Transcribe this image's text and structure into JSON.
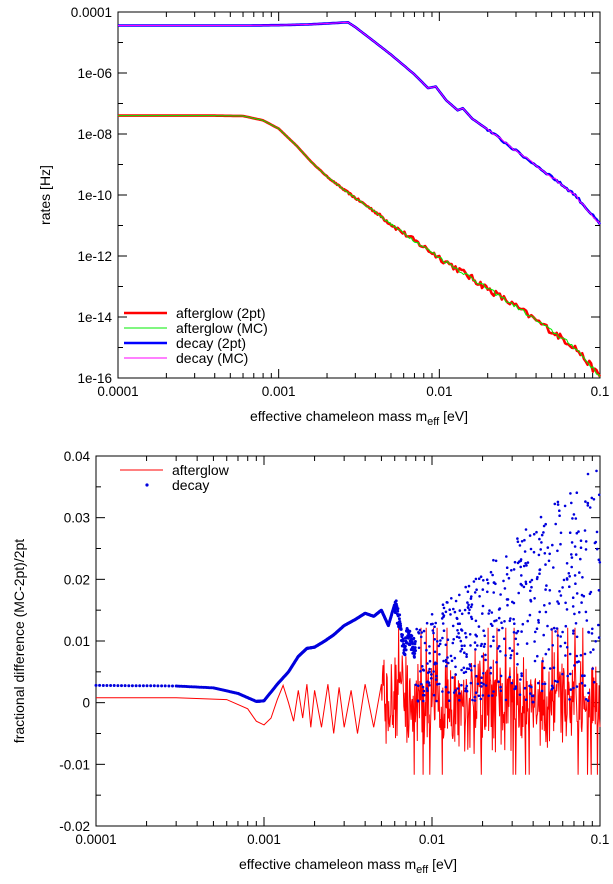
{
  "chart_data": [
    {
      "type": "line",
      "ylabel": "rates [Hz]",
      "xlabel_main": "effective chameleon mass m",
      "xlabel_sub": "eff",
      "xlabel_unit": " [eV]",
      "xscale": "log",
      "yscale": "log",
      "xlim": [
        0.0001,
        0.1
      ],
      "ylim": [
        1e-16,
        0.0001
      ],
      "xticks": [
        {
          "value": 0.0001,
          "label": "0.0001"
        },
        {
          "value": 0.001,
          "label": "0.001"
        },
        {
          "value": 0.01,
          "label": "0.01"
        },
        {
          "value": 0.1,
          "label": "0.1"
        }
      ],
      "yticks": [
        {
          "value": 0.0001,
          "label": "0.0001"
        },
        {
          "value": 1e-06,
          "label": "1e-06"
        },
        {
          "value": 1e-08,
          "label": "1e-08"
        },
        {
          "value": 1e-10,
          "label": "1e-10"
        },
        {
          "value": 1e-12,
          "label": "1e-12"
        },
        {
          "value": 1e-14,
          "label": "1e-14"
        },
        {
          "value": 1e-16,
          "label": "1e-16"
        }
      ],
      "grid": false,
      "legend_position": "bottom-left",
      "series": [
        {
          "name": "afterglow (2pt)",
          "color": "#ff0000",
          "style": "thick",
          "x": [
            0.0001,
            0.0002,
            0.0004,
            0.0006,
            0.0008,
            0.001,
            0.0013,
            0.0016,
            0.002,
            0.0025,
            0.003,
            0.004,
            0.005,
            0.007,
            0.01,
            0.015,
            0.02,
            0.03,
            0.05,
            0.07,
            0.1
          ],
          "y": [
            4e-08,
            4e-08,
            4e-08,
            3.9e-08,
            2.8e-08,
            1.5e-08,
            4e-09,
            1.2e-09,
            4e-10,
            1.6e-10,
            8e-11,
            2.8e-11,
            1.1e-11,
            3.2e-12,
            9e-13,
            2.3e-13,
            8.5e-14,
            2.2e-14,
            3.5e-15,
            1e-15,
            1.1e-16
          ]
        },
        {
          "name": "afterglow (MC)",
          "color": "#00ee00",
          "style": "thin",
          "x": [
            0.0001,
            0.0002,
            0.0004,
            0.0006,
            0.0008,
            0.001,
            0.0013,
            0.0016,
            0.002,
            0.0025,
            0.003,
            0.004,
            0.005,
            0.007,
            0.01,
            0.015,
            0.02,
            0.03,
            0.05,
            0.07,
            0.1
          ],
          "y": [
            4e-08,
            4e-08,
            4e-08,
            3.9e-08,
            2.8e-08,
            1.5e-08,
            4e-09,
            1.2e-09,
            4e-10,
            1.6e-10,
            8e-11,
            2.8e-11,
            1.1e-11,
            3.2e-12,
            9e-13,
            2.3e-13,
            8.5e-14,
            2.2e-14,
            3.5e-15,
            1e-15,
            1.1e-16
          ]
        },
        {
          "name": "decay (2pt)",
          "color": "#0000ff",
          "style": "thick",
          "x": [
            0.0001,
            0.0003,
            0.0006,
            0.001,
            0.0015,
            0.002,
            0.0027,
            0.003,
            0.004,
            0.005,
            0.007,
            0.0085,
            0.0095,
            0.011,
            0.013,
            0.014,
            0.016,
            0.02,
            0.03,
            0.05,
            0.07,
            0.1
          ],
          "y": [
            3.6e-05,
            3.6e-05,
            3.6e-05,
            3.7e-05,
            3.9e-05,
            4.2e-05,
            4.6e-05,
            3.2e-05,
            1e-05,
            4e-06,
            9e-07,
            3.2e-07,
            3.6e-07,
            1.3e-07,
            6e-08,
            7e-08,
            3.2e-08,
            1.4e-08,
            2.8e-09,
            4e-10,
            1e-10,
            1.1e-11
          ]
        },
        {
          "name": "decay (MC)",
          "color": "#ff00ff",
          "style": "thin",
          "x": [
            0.0001,
            0.0003,
            0.0006,
            0.001,
            0.0015,
            0.002,
            0.0027,
            0.003,
            0.004,
            0.005,
            0.007,
            0.0085,
            0.0095,
            0.011,
            0.013,
            0.014,
            0.016,
            0.02,
            0.03,
            0.05,
            0.07,
            0.1
          ],
          "y": [
            3.6e-05,
            3.6e-05,
            3.6e-05,
            3.7e-05,
            3.9e-05,
            4.2e-05,
            4.6e-05,
            3.2e-05,
            1e-05,
            4e-06,
            9e-07,
            3.2e-07,
            3.6e-07,
            1.3e-07,
            6e-08,
            7e-08,
            3.2e-08,
            1.4e-08,
            2.8e-09,
            4e-10,
            1e-10,
            1.1e-11
          ]
        }
      ]
    },
    {
      "type": "line",
      "ylabel": "fractional difference (MC-2pt)/2pt",
      "xlabel_main": "effective chameleon mass m",
      "xlabel_sub": "eff",
      "xlabel_unit": " [eV]",
      "xscale": "log",
      "yscale": "linear",
      "xlim": [
        0.0001,
        0.1
      ],
      "ylim": [
        -0.02,
        0.04
      ],
      "xticks": [
        {
          "value": 0.0001,
          "label": "0.0001"
        },
        {
          "value": 0.001,
          "label": "0.001"
        },
        {
          "value": 0.01,
          "label": "0.01"
        },
        {
          "value": 0.1,
          "label": "0.1"
        }
      ],
      "yticks": [
        {
          "value": 0.04,
          "label": "0.04"
        },
        {
          "value": 0.03,
          "label": "0.03"
        },
        {
          "value": 0.02,
          "label": "0.02"
        },
        {
          "value": 0.01,
          "label": "0.01"
        },
        {
          "value": 0,
          "label": "0"
        },
        {
          "value": -0.01,
          "label": "-0.01"
        },
        {
          "value": -0.02,
          "label": "-0.02"
        }
      ],
      "grid": false,
      "legend_position": "top-left",
      "series": [
        {
          "name": "afterglow",
          "color": "#ff0000",
          "style": "line",
          "x": [
            0.0001,
            0.0003,
            0.0006,
            0.0008,
            0.0009,
            0.001,
            0.0011,
            0.0012,
            0.0013,
            0.0014,
            0.0015,
            0.0016,
            0.0017,
            0.0018,
            0.0019,
            0.002,
            0.0022,
            0.0024,
            0.0026,
            0.0028,
            0.003,
            0.0033,
            0.0036,
            0.004,
            0.0045,
            0.005
          ],
          "y": [
            0.0008,
            0.0008,
            0.0005,
            -0.001,
            -0.003,
            -0.0036,
            -0.0025,
            0.0005,
            0.0028,
            0.0,
            -0.003,
            0.002,
            -0.0025,
            0.003,
            -0.004,
            0.002,
            -0.004,
            0.003,
            -0.005,
            0.0025,
            -0.004,
            0.002,
            -0.005,
            0.003,
            -0.004,
            0.003
          ],
          "noisy_from": 0.005,
          "noisy_to": 0.1,
          "noisy_amplitude": 0.009
        },
        {
          "name": "decay",
          "color": "#0000dd",
          "style": "points",
          "x": [
            0.0001,
            0.0003,
            0.0005,
            0.0007,
            0.0009,
            0.001,
            0.0012,
            0.0014,
            0.0016,
            0.0018,
            0.002,
            0.0023,
            0.0026,
            0.003,
            0.0035,
            0.004,
            0.0045,
            0.005,
            0.0055,
            0.006,
            0.0064,
            0.0068,
            0.0072,
            0.0076,
            0.008
          ],
          "y": [
            0.0028,
            0.0027,
            0.0024,
            0.0015,
            0.0002,
            0.0003,
            0.003,
            0.005,
            0.0075,
            0.0088,
            0.009,
            0.01,
            0.011,
            0.0125,
            0.0135,
            0.0145,
            0.014,
            0.015,
            0.0125,
            0.016,
            0.013,
            0.008,
            0.0115,
            0.0095,
            0.0085
          ],
          "scatter_from": 0.008,
          "scatter_to": 0.1,
          "scatter_min": 0.0,
          "scatter_max": 0.039
        }
      ]
    }
  ]
}
